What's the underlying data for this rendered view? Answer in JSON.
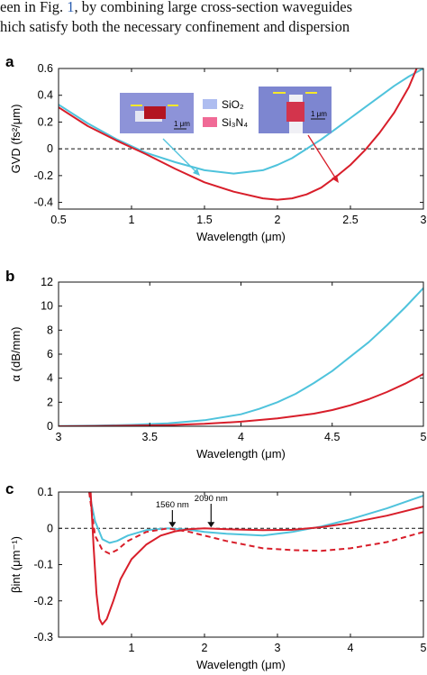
{
  "caption": {
    "line1_before": "een in Fig. ",
    "line1_ref": "1",
    "line1_after": ", by combining large cross-section waveguides",
    "line2": "hich satisfy both the necessary confinement and dispersion"
  },
  "colors": {
    "sio2": "#4fc3dc",
    "si3n4": "#d81e2a",
    "axis": "#111111"
  },
  "chart_data": [
    {
      "panel": "a",
      "type": "line",
      "xlabel": "Wavelength (μm)",
      "ylabel": "GVD (fs²/μm)",
      "xlim": [
        0.5,
        3.0
      ],
      "ylim": [
        -0.45,
        0.6
      ],
      "xticks": [
        "0.5",
        "1",
        "1.5",
        "2",
        "2.5",
        "3"
      ],
      "xtick_values": [
        0.5,
        1,
        1.5,
        2,
        2.5,
        3
      ],
      "yticks": [
        "-0.4",
        "-0.2",
        "0",
        "0.2",
        "0.4",
        "0.6"
      ],
      "ytick_values": [
        -0.4,
        -0.2,
        0,
        0.2,
        0.4,
        0.6
      ],
      "zero_line": true,
      "legend": [
        {
          "label": "SiO₂",
          "color": "#aebdf0"
        },
        {
          "label": "Si₃N₄",
          "color": "#f06a96"
        }
      ],
      "inset_labels": [
        "1 μm",
        "1 μm"
      ],
      "series": [
        {
          "color": "#4fc3dc",
          "x": [
            0.5,
            0.7,
            0.9,
            1.1,
            1.3,
            1.5,
            1.7,
            1.9,
            2.0,
            2.1,
            2.2,
            2.3,
            2.4,
            2.5,
            2.6,
            2.7,
            2.8,
            2.9,
            3.0
          ],
          "y": [
            0.33,
            0.19,
            0.07,
            -0.03,
            -0.1,
            -0.16,
            -0.185,
            -0.16,
            -0.12,
            -0.07,
            0.0,
            0.07,
            0.15,
            0.23,
            0.31,
            0.39,
            0.47,
            0.54,
            0.6
          ]
        },
        {
          "color": "#d81e2a",
          "x": [
            0.5,
            0.7,
            0.9,
            1.1,
            1.3,
            1.5,
            1.7,
            1.9,
            2.0,
            2.1,
            2.2,
            2.3,
            2.4,
            2.5,
            2.6,
            2.7,
            2.8,
            2.9,
            3.0
          ],
          "y": [
            0.31,
            0.17,
            0.06,
            -0.04,
            -0.15,
            -0.25,
            -0.32,
            -0.37,
            -0.38,
            -0.37,
            -0.34,
            -0.29,
            -0.21,
            -0.12,
            -0.01,
            0.12,
            0.27,
            0.46,
            0.72
          ]
        }
      ]
    },
    {
      "panel": "b",
      "type": "line",
      "xlabel": "Wavelength (μm)",
      "ylabel": "α (dB/mm)",
      "xlim": [
        3,
        5
      ],
      "ylim": [
        0,
        12
      ],
      "xticks": [
        "3",
        "3.5",
        "4",
        "4.5",
        "5"
      ],
      "xtick_values": [
        3,
        3.5,
        4,
        4.5,
        5
      ],
      "yticks": [
        "0",
        "2",
        "4",
        "6",
        "8",
        "10",
        "12"
      ],
      "ytick_values": [
        0,
        2,
        4,
        6,
        8,
        10,
        12
      ],
      "series": [
        {
          "color": "#4fc3dc",
          "x": [
            3.0,
            3.2,
            3.4,
            3.6,
            3.8,
            4.0,
            4.1,
            4.2,
            4.3,
            4.4,
            4.5,
            4.6,
            4.7,
            4.8,
            4.9,
            5.0
          ],
          "y": [
            0.02,
            0.05,
            0.12,
            0.25,
            0.5,
            1.0,
            1.45,
            2.0,
            2.7,
            3.6,
            4.6,
            5.8,
            7.0,
            8.4,
            9.9,
            11.5
          ]
        },
        {
          "color": "#d81e2a",
          "x": [
            3.0,
            3.2,
            3.4,
            3.6,
            3.8,
            4.0,
            4.2,
            4.4,
            4.5,
            4.6,
            4.7,
            4.8,
            4.9,
            5.0
          ],
          "y": [
            0.0,
            0.02,
            0.05,
            0.1,
            0.2,
            0.38,
            0.65,
            1.05,
            1.35,
            1.75,
            2.25,
            2.85,
            3.55,
            4.35
          ]
        }
      ]
    },
    {
      "panel": "c",
      "type": "line",
      "xlabel": "Wavelength (μm)",
      "ylabel": "βint (μm⁻¹)",
      "xlim": [
        0,
        5
      ],
      "ylim": [
        -0.3,
        0.1
      ],
      "xticks": [
        "1",
        "2",
        "3",
        "4",
        "5"
      ],
      "xtick_values": [
        1,
        2,
        3,
        4,
        5
      ],
      "yticks": [
        "-0.3",
        "-0.2",
        "-0.1",
        "0",
        "0.1"
      ],
      "ytick_values": [
        -0.3,
        -0.2,
        -0.1,
        0,
        0.1
      ],
      "zero_line": true,
      "annotations": [
        {
          "text": "1560 nm",
          "x": 1.56
        },
        {
          "text": "2090 nm",
          "x": 2.09
        }
      ],
      "series": [
        {
          "color": "#4fc3dc",
          "dash": false,
          "x": [
            0.42,
            0.5,
            0.6,
            0.7,
            0.8,
            0.95,
            1.2,
            1.5,
            1.8,
            2.0,
            2.3,
            2.8,
            3.2,
            3.6,
            4.0,
            4.5,
            5.0
          ],
          "y": [
            0.1,
            0.02,
            -0.03,
            -0.04,
            -0.035,
            -0.02,
            -0.005,
            0.0,
            -0.004,
            -0.01,
            -0.015,
            -0.02,
            -0.01,
            0.005,
            0.025,
            0.055,
            0.09
          ]
        },
        {
          "color": "#d81e2a",
          "dash": true,
          "x": [
            0.42,
            0.5,
            0.6,
            0.7,
            0.8,
            0.95,
            1.2,
            1.5,
            1.8,
            2.0,
            2.3,
            2.8,
            3.2,
            3.6,
            4.0,
            4.5,
            5.0
          ],
          "y": [
            0.1,
            -0.02,
            -0.06,
            -0.07,
            -0.06,
            -0.035,
            -0.01,
            0.0,
            -0.01,
            -0.02,
            -0.035,
            -0.055,
            -0.06,
            -0.062,
            -0.055,
            -0.038,
            -0.01
          ]
        },
        {
          "color": "#d81e2a",
          "dash": false,
          "x": [
            0.44,
            0.48,
            0.52,
            0.56,
            0.6,
            0.66,
            0.75,
            0.85,
            1.0,
            1.2,
            1.4,
            1.6,
            1.8,
            2.0,
            2.4,
            2.8,
            3.2,
            3.6,
            4.0,
            4.5,
            5.0
          ],
          "y": [
            0.1,
            -0.05,
            -0.18,
            -0.25,
            -0.265,
            -0.25,
            -0.2,
            -0.14,
            -0.085,
            -0.045,
            -0.02,
            -0.008,
            -0.002,
            0.0,
            -0.003,
            -0.005,
            -0.004,
            0.003,
            0.015,
            0.035,
            0.06
          ]
        }
      ]
    }
  ]
}
